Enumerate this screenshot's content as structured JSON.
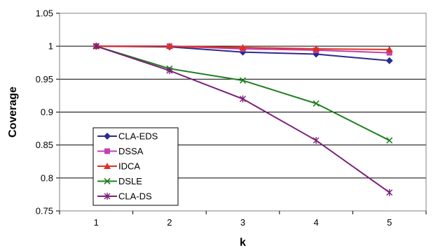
{
  "chart_data": {
    "type": "line",
    "xlabel": "k",
    "ylabel": "Coverage",
    "x": [
      1,
      2,
      3,
      4,
      5
    ],
    "ylim": [
      0.75,
      1.05
    ],
    "yticks": [
      "0.75",
      "0.8",
      "0.85",
      "0.9",
      "0.95",
      "1",
      "1.05"
    ],
    "grid": "horizontal",
    "legend_position": "bottom-left",
    "series": [
      {
        "name": "CLA-EDS",
        "color": "#2b2b8c",
        "marker": "diamond",
        "values": [
          1.0,
          0.999,
          0.991,
          0.988,
          0.978
        ]
      },
      {
        "name": "DSSA",
        "color": "#c040b0",
        "marker": "square",
        "values": [
          1.0,
          1.0,
          0.996,
          0.994,
          0.99
        ]
      },
      {
        "name": "IDCA",
        "color": "#e03020",
        "marker": "triangle",
        "values": [
          1.0,
          1.0,
          0.998,
          0.996,
          0.995
        ]
      },
      {
        "name": "DSLE",
        "color": "#208020",
        "marker": "x",
        "values": [
          1.0,
          0.966,
          0.948,
          0.913,
          0.857
        ]
      },
      {
        "name": "CLA-DS",
        "color": "#7a1f7a",
        "marker": "star",
        "values": [
          1.0,
          0.963,
          0.92,
          0.857,
          0.778
        ]
      }
    ]
  }
}
